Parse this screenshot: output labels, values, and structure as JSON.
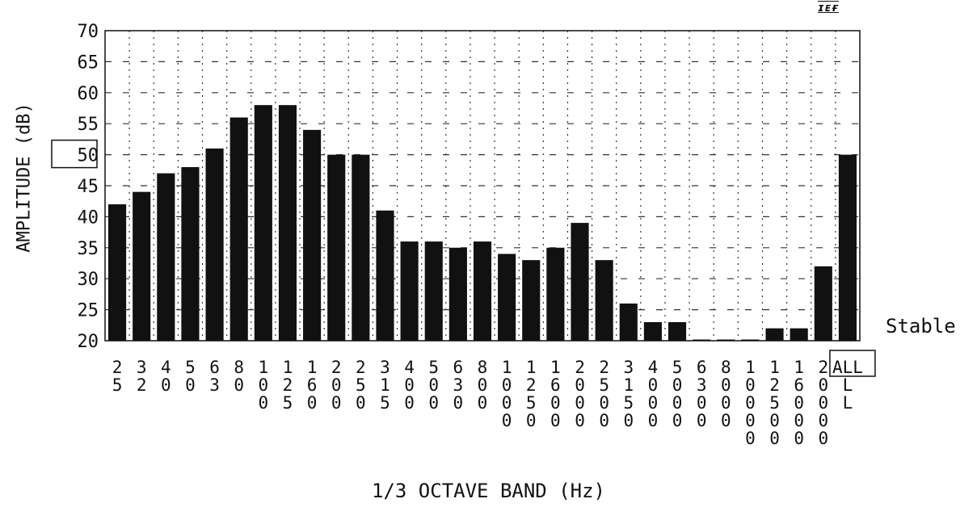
{
  "brand_mark": "ɪᴇғ",
  "status": "Stable",
  "chart_data": {
    "type": "bar",
    "xlabel": "1/3 OCTAVE BAND (Hz)",
    "ylabel": "AMPLITUDE (dB)",
    "ylim": [
      20,
      70
    ],
    "yticks": [
      70,
      65,
      60,
      55,
      50,
      45,
      40,
      35,
      30,
      25,
      20
    ],
    "highlighted_ytick": 50,
    "highlighted_category": "ALL",
    "grid": true,
    "bar_color": "#111111",
    "categories": [
      "25",
      "32",
      "40",
      "50",
      "63",
      "80",
      "100",
      "125",
      "160",
      "200",
      "250",
      "315",
      "400",
      "500",
      "630",
      "800",
      "1000",
      "1250",
      "1600",
      "2000",
      "2500",
      "3150",
      "4000",
      "5000",
      "6300",
      "8000",
      "10000",
      "12500",
      "16000",
      "20000",
      "ALL"
    ],
    "tick_label_columns": [
      [
        "2",
        "5"
      ],
      [
        "3",
        "2"
      ],
      [
        "4",
        "0"
      ],
      [
        "5",
        "0"
      ],
      [
        "6",
        "3"
      ],
      [
        "8",
        "0"
      ],
      [
        "1",
        "0",
        "0"
      ],
      [
        "1",
        "2",
        "5"
      ],
      [
        "1",
        "6",
        "0"
      ],
      [
        "2",
        "0",
        "0"
      ],
      [
        "2",
        "5",
        "0"
      ],
      [
        "3",
        "1",
        "5"
      ],
      [
        "4",
        "0",
        "0"
      ],
      [
        "5",
        "0",
        "0"
      ],
      [
        "6",
        "3",
        "0"
      ],
      [
        "8",
        "0",
        "0"
      ],
      [
        "1",
        "0",
        "0",
        "0"
      ],
      [
        "1",
        "2",
        "5",
        "0"
      ],
      [
        "1",
        "6",
        "0",
        "0"
      ],
      [
        "2",
        "0",
        "0",
        "0"
      ],
      [
        "2",
        "5",
        "0",
        "0"
      ],
      [
        "3",
        "1",
        "5",
        "0"
      ],
      [
        "4",
        "0",
        "0",
        "0"
      ],
      [
        "5",
        "0",
        "0",
        "0"
      ],
      [
        "6",
        "3",
        "0",
        "0"
      ],
      [
        "8",
        "0",
        "0",
        "0"
      ],
      [
        "1",
        "0",
        "0",
        "0",
        "0"
      ],
      [
        "1",
        "2",
        "5",
        "0",
        "0"
      ],
      [
        "1",
        "6",
        "0",
        "0",
        "0"
      ],
      [
        "2",
        "0",
        "0",
        "0",
        "0"
      ],
      [
        "ALL",
        "L",
        "L"
      ]
    ],
    "values": [
      42,
      44,
      47,
      48,
      51,
      56,
      58,
      58,
      54,
      50,
      50,
      41,
      36,
      36,
      35,
      36,
      34,
      33,
      35,
      39,
      33,
      26,
      23,
      23,
      20,
      20,
      20,
      22,
      22,
      32,
      50
    ]
  }
}
